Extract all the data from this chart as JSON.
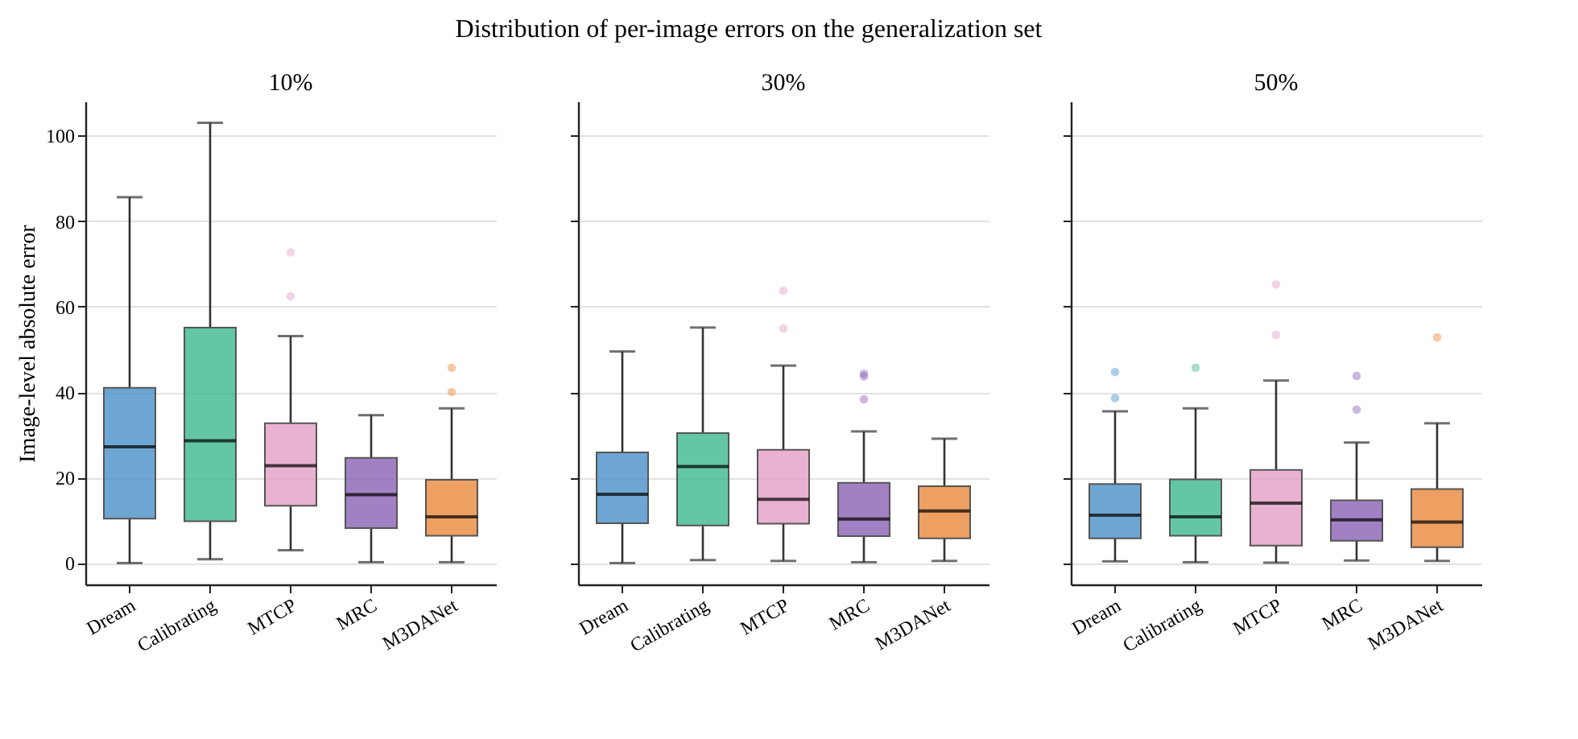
{
  "chart_data": [
    {
      "type": "box",
      "title": "10%",
      "annotations": [
        "Distribution of per-image errors on the generalization set"
      ],
      "ylabel": "Image-level absolute error",
      "categories": [
        "Dream",
        "Calibrating",
        "MTCP",
        "MRC",
        "M3DANet"
      ],
      "colors": [
        "#4a90c8",
        "#3cb98e",
        "#e29fc4",
        "#8a62b5",
        "#e8883a"
      ],
      "ylim": [
        -5,
        108
      ],
      "yticks": [
        0,
        20,
        40,
        60,
        80,
        100
      ],
      "grid": "y",
      "boxes": [
        {
          "low": 0,
          "q1": 10.4,
          "median": 27.2,
          "q3": 41,
          "high": 85.6
        },
        {
          "low": 0.9,
          "q1": 9.8,
          "median": 28.6,
          "q3": 55.1,
          "high": 103
        },
        {
          "low": 3,
          "q1": 13.4,
          "median": 22.8,
          "q3": 32.7,
          "high": 53.1,
          "outliers": [
            72.7,
            62.4
          ]
        },
        {
          "low": 0.2,
          "q1": 8.2,
          "median": 16,
          "q3": 24.6,
          "high": 34.6
        },
        {
          "low": 0.2,
          "q1": 6.4,
          "median": 10.8,
          "q3": 19.5,
          "high": 36.2,
          "outliers": [
            45.7,
            40
          ]
        }
      ]
    },
    {
      "type": "box",
      "title": "30%",
      "categories": [
        "Dream",
        "Calibrating",
        "MTCP",
        "MRC",
        "M3DANet"
      ],
      "colors": [
        "#4a90c8",
        "#3cb98e",
        "#e29fc4",
        "#8a62b5",
        "#e8883a"
      ],
      "ylim": [
        -5,
        108
      ],
      "yticks": [
        0,
        20,
        40,
        60,
        80,
        100
      ],
      "grid": "y",
      "tick_labels": "x",
      "boxes": [
        {
          "low": 0,
          "q1": 9.3,
          "median": 16.1,
          "q3": 25.9,
          "high": 49.5
        },
        {
          "low": 0.7,
          "q1": 8.8,
          "median": 22.6,
          "q3": 30.4,
          "high": 55.1
        },
        {
          "low": 0.5,
          "q1": 9.2,
          "median": 14.9,
          "q3": 26.5,
          "high": 46.2,
          "outliers": [
            63.7,
            54.9
          ]
        },
        {
          "low": 0.2,
          "q1": 6.3,
          "median": 10.3,
          "q3": 18.8,
          "high": 30.8,
          "outliers": [
            44.3,
            43.7,
            38.3
          ]
        },
        {
          "low": 0.5,
          "q1": 5.8,
          "median": 12.2,
          "q3": 18,
          "high": 29.1
        }
      ]
    },
    {
      "type": "box",
      "title": "50%",
      "categories": [
        "Dream",
        "Calibrating",
        "MTCP",
        "MRC",
        "M3DANet"
      ],
      "colors": [
        "#4a90c8",
        "#3cb98e",
        "#e29fc4",
        "#8a62b5",
        "#e8883a"
      ],
      "ylim": [
        -5,
        108
      ],
      "yticks": [
        0,
        20,
        40,
        60,
        80,
        100
      ],
      "grid": "y",
      "tick_labels": "x",
      "boxes": [
        {
          "low": 0.4,
          "q1": 5.8,
          "median": 11.2,
          "q3": 18.5,
          "high": 35.5,
          "outliers": [
            44.7,
            38.6
          ]
        },
        {
          "low": 0.2,
          "q1": 6.4,
          "median": 10.8,
          "q3": 19.6,
          "high": 36.2,
          "outliers": [
            45.7
          ]
        },
        {
          "low": 0.1,
          "q1": 4.1,
          "median": 14,
          "q3": 21.8,
          "high": 42.7,
          "outliers": [
            65.2,
            53.4
          ]
        },
        {
          "low": 0.6,
          "q1": 5.2,
          "median": 10.1,
          "q3": 14.7,
          "high": 28.2,
          "outliers": [
            43.8,
            35.9
          ]
        },
        {
          "low": 0.5,
          "q1": 3.7,
          "median": 9.6,
          "q3": 17.3,
          "high": 32.7,
          "outliers": [
            52.8
          ]
        }
      ]
    }
  ]
}
